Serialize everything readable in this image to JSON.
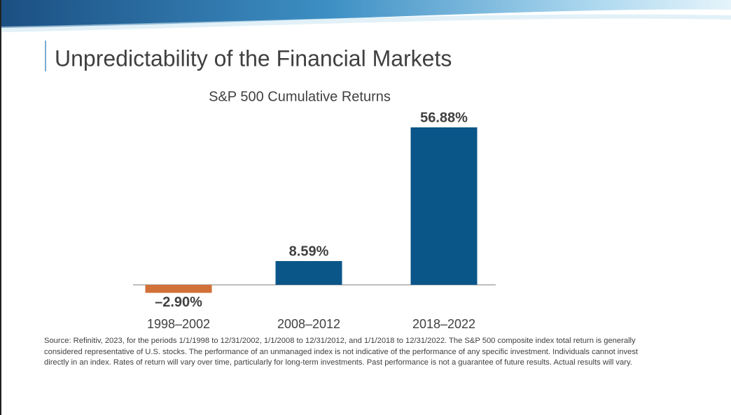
{
  "slide_title": "Unpredictability of the Financial Markets",
  "chart_data": {
    "type": "bar",
    "title": "S&P 500 Cumulative Returns",
    "categories": [
      "1998–2002",
      "2008–2012",
      "2018–2022"
    ],
    "values": [
      -2.9,
      8.59,
      56.88
    ],
    "value_labels": [
      "–2.90%",
      "8.59%",
      "56.88%"
    ],
    "colors": [
      "#d2703a",
      "#0b5689",
      "#0b5689"
    ]
  },
  "source": "Source:  Refinitiv, 2023, for the periods 1/1/1998 to 12/31/2002, 1/1/2008 to 12/31/2012, and 1/1/2018 to 12/31/2022.  The S&P 500 composite index total return is generally considered representative of U.S. stocks. The performance of an unmanaged index is not indicative of the performance of any specific investment. Individuals cannot invest directly in an index. Rates of return will vary over time, particularly for long-term investments. Past performance is not a guarantee of future results. Actual results will vary."
}
